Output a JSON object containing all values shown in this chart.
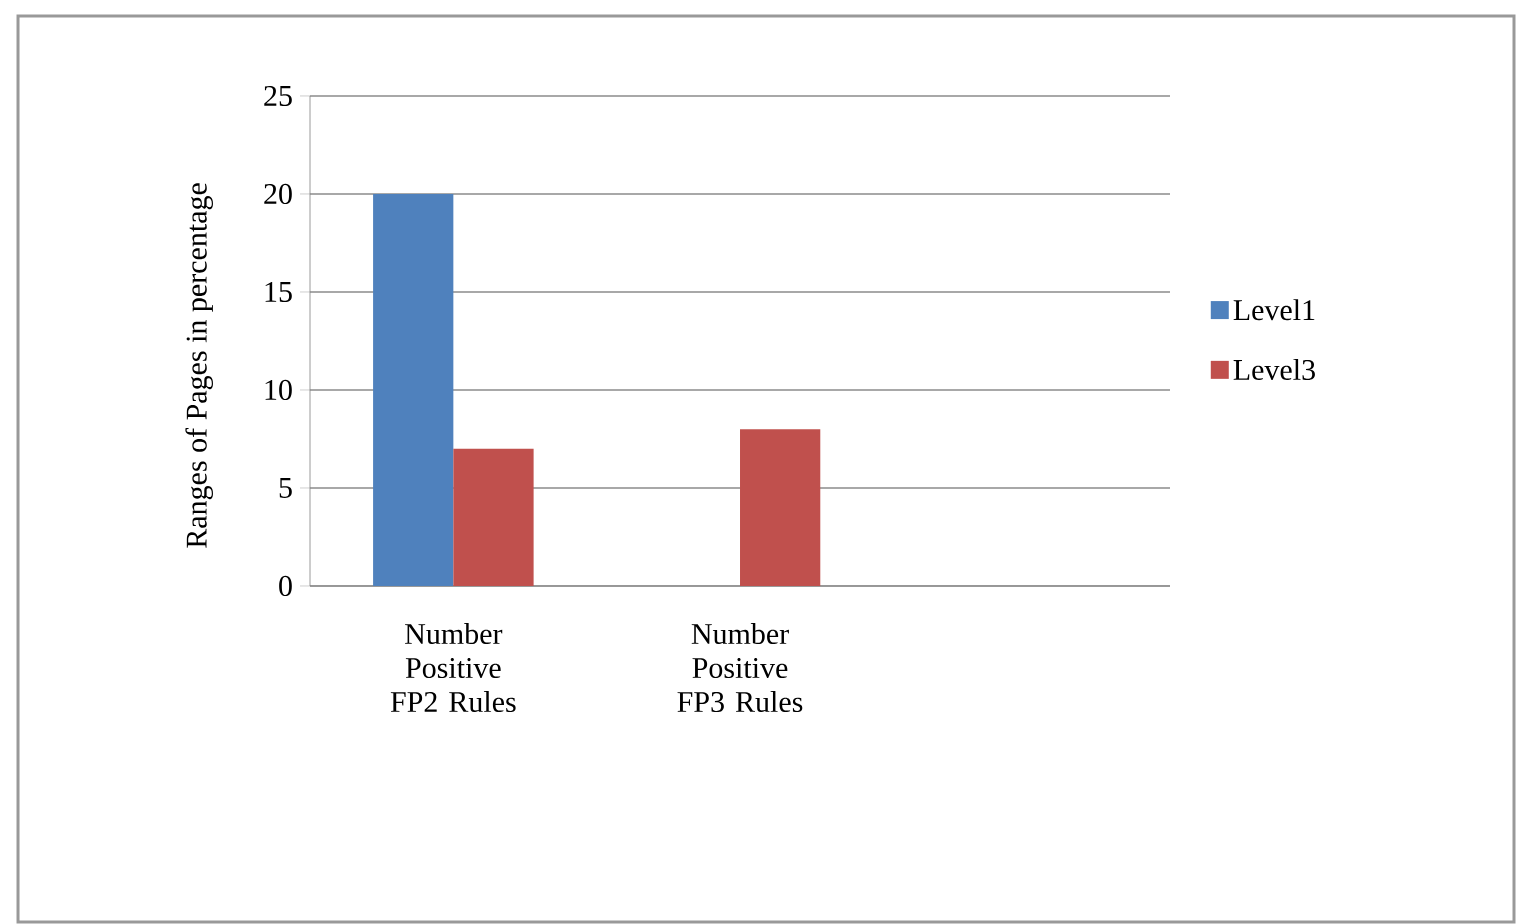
{
  "chart_data": {
    "type": "bar",
    "ylabel": "Ranges of Pages in percentage",
    "categories": [
      "Number Positive FP2 Rules",
      "Number Positive FP3 Rules",
      null
    ],
    "series": [
      {
        "name": "Level1",
        "color": "#4f81bd",
        "values": [
          20,
          null,
          null
        ]
      },
      {
        "name": "Level3",
        "color": "#c0504d",
        "values": [
          7,
          8,
          null
        ]
      }
    ],
    "ylim": [
      0,
      25
    ],
    "yticks": [
      0,
      5,
      10,
      15,
      20,
      25
    ],
    "grid": "y",
    "legend": "right"
  }
}
